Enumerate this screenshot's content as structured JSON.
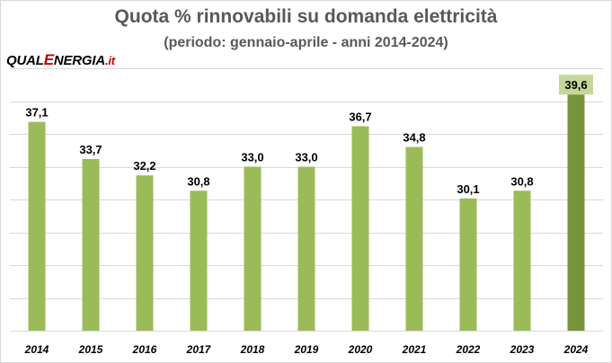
{
  "logo": {
    "part1": "QUAL",
    "part2": "E",
    "part3": "NERGIA",
    "part4": ".it"
  },
  "chart_data": {
    "type": "bar",
    "title": "Quota % rinnovabili su domanda elettricità",
    "subtitle": "(periodo: gennaio-aprile - anni 2014-2024)",
    "categories": [
      "2014",
      "2015",
      "2016",
      "2017",
      "2018",
      "2019",
      "2020",
      "2021",
      "2022",
      "2023",
      "2024"
    ],
    "values": [
      37.1,
      33.7,
      32.2,
      30.8,
      33.0,
      33.0,
      36.7,
      34.8,
      30.1,
      30.8,
      39.6
    ],
    "data_labels": [
      "37,1",
      "33,7",
      "32,2",
      "30,8",
      "33,0",
      "33,0",
      "36,7",
      "34,8",
      "30,1",
      "30,8",
      "39,6"
    ],
    "highlight_index": 10,
    "ylim": [
      18,
      42
    ],
    "y_tick_values": [
      18,
      21,
      24,
      27,
      30,
      33,
      36,
      39,
      42
    ],
    "y_tick_labels_visible": false,
    "grid": true,
    "colors": {
      "bar": "#9bbb59",
      "bar_highlight": "#77933c",
      "label_highlight_bg": "#c4d79b",
      "grid": "#d9d9d9",
      "text": "#000000"
    }
  }
}
